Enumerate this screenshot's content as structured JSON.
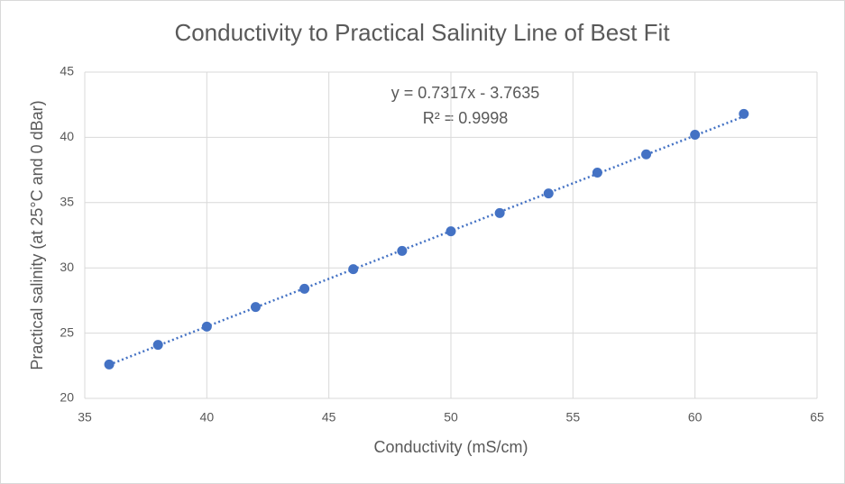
{
  "chart_data": {
    "type": "scatter",
    "title": "Conductivity to Practical Salinity Line of Best Fit",
    "x_label": "Conductivity (mS/cm)",
    "y_label": "Practical salinity (at 25°C and 0 dBar)",
    "series": [
      {
        "name": "Practical salinity",
        "color": "#4472c4",
        "x": [
          36,
          38,
          40,
          42,
          44,
          46,
          48,
          50,
          52,
          54,
          56,
          58,
          60,
          62
        ],
        "values": [
          22.6,
          24.1,
          25.5,
          27.0,
          28.4,
          29.9,
          31.3,
          32.8,
          34.2,
          35.7,
          37.3,
          38.7,
          40.2,
          41.8
        ]
      }
    ],
    "trendline": {
      "equation": "y = 0.7317x - 3.7635",
      "r_squared": "R² = 0.9998",
      "slope": 0.7317,
      "intercept": -3.7635,
      "color": "#4472c4"
    },
    "xlim": [
      35,
      65
    ],
    "xticks": [
      35,
      40,
      45,
      50,
      55,
      60,
      65
    ],
    "ylim": [
      20,
      45
    ],
    "yticks": [
      20,
      25,
      30,
      35,
      40,
      45
    ],
    "grid": true
  }
}
